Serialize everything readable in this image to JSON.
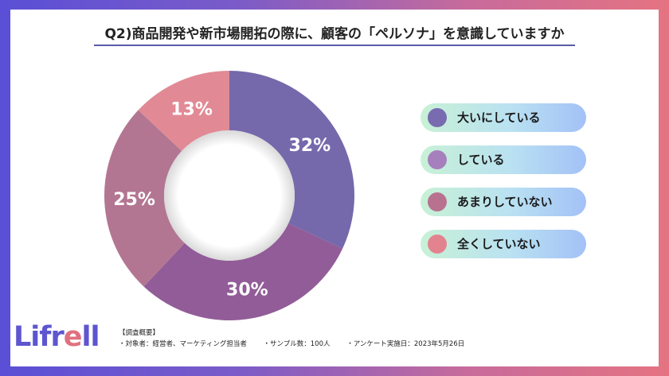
{
  "title": "Q2)商品開発や新市場開拓の際に、顧客の「ペルソナ」を意識していますか",
  "chart_data": {
    "type": "pie",
    "categories": [
      "大いにしている",
      "している",
      "あまりしていない",
      "全くしていない"
    ],
    "values": [
      32,
      30,
      25,
      13
    ],
    "data_labels": [
      "32%",
      "30%",
      "25%",
      "13%"
    ],
    "colors": [
      "#7569ab",
      "#915c98",
      "#b37692",
      "#e18a95"
    ],
    "legend_colors": [
      "#786bb0",
      "#a67fbd",
      "#b8728f",
      "#e2838f"
    ],
    "legend_position": "right"
  },
  "logo": {
    "main": "Lifr",
    "accent": "e",
    "tail": "ll"
  },
  "notes": {
    "heading": "【調査概要】",
    "items": [
      "・対象者：経営者、マーケティング担当者",
      "・サンプル数：100人",
      "・アンケート実施日：2023年5月26日"
    ]
  }
}
